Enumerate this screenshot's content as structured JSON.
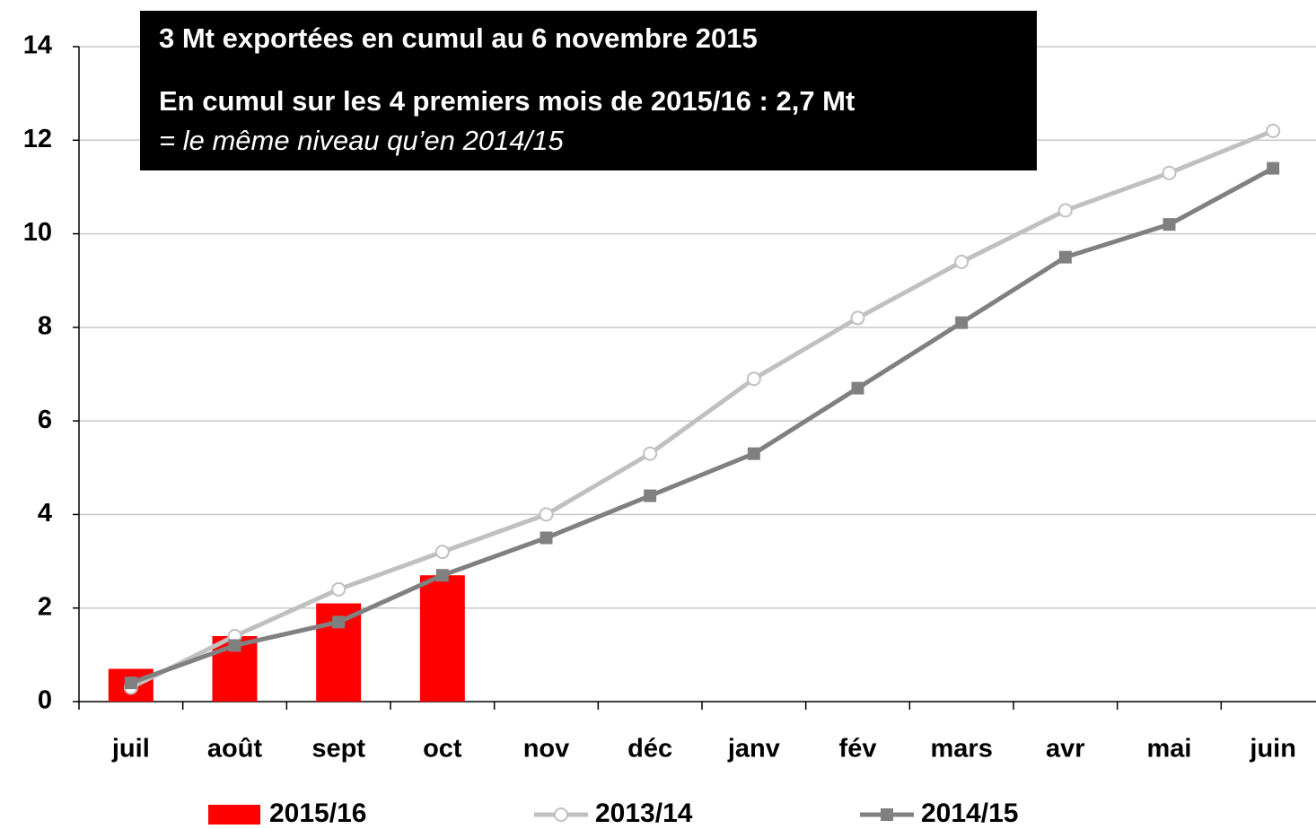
{
  "chart_data": {
    "type": "combo",
    "annotations": [
      "3 Mt exportées en cumul au 6 novembre 2015",
      "En cumul sur les 4 premiers mois de 2015/16 : 2,7 Mt",
      "= le même niveau qu’en 2014/15"
    ],
    "categories": [
      "juil",
      "août",
      "sept",
      "oct",
      "nov",
      "déc",
      "janv",
      "fév",
      "mars",
      "avr",
      "mai",
      "juin"
    ],
    "series": [
      {
        "name": "2015/16",
        "type": "bar",
        "color": "#ff0000",
        "values": [
          0.7,
          1.4,
          2.1,
          2.7,
          null,
          null,
          null,
          null,
          null,
          null,
          null,
          null
        ]
      },
      {
        "name": "2013/14",
        "type": "line",
        "marker": "circle",
        "color": "#c0c0c0",
        "values": [
          0.3,
          1.4,
          2.4,
          3.2,
          4.0,
          5.3,
          6.9,
          8.2,
          9.4,
          10.5,
          11.3,
          12.2
        ]
      },
      {
        "name": "2014/15",
        "type": "line",
        "marker": "square",
        "color": "#808080",
        "values": [
          0.4,
          1.2,
          1.7,
          2.7,
          3.5,
          4.4,
          5.3,
          6.7,
          8.1,
          9.5,
          10.2,
          11.4
        ]
      }
    ],
    "ylim": [
      0,
      14
    ],
    "yticks": [
      0,
      2,
      4,
      6,
      8,
      10,
      12,
      14
    ],
    "grid": true,
    "legend": "bottom"
  }
}
